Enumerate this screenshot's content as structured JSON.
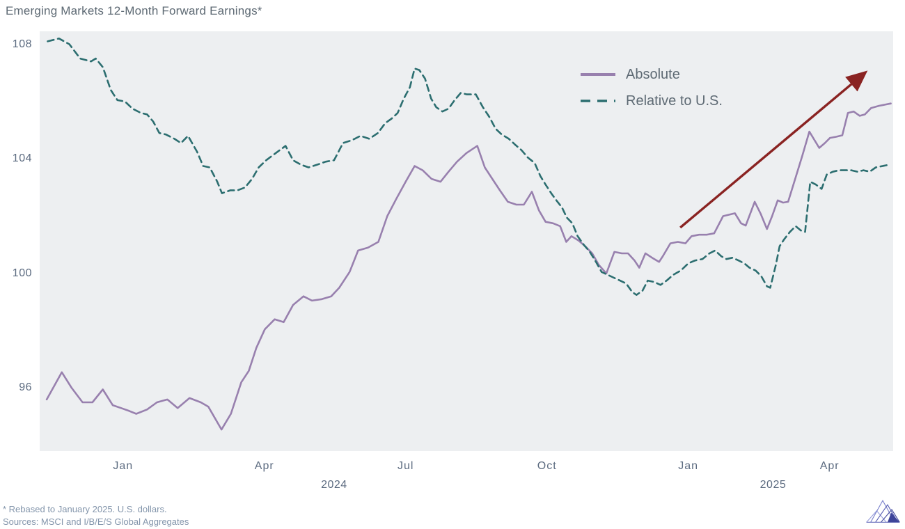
{
  "title": "Emerging Markets 12-Month Forward Earnings*",
  "footnotes": [
    "* Rebased to January 2025. U.S. dollars.",
    "Sources: MSCI and I/B/E/S Global Aggregates"
  ],
  "colors": {
    "absolute_line": "#9880ae",
    "relative_line": "#2c6e70",
    "arrow": "#8a2322",
    "plot_background": "#edeff1",
    "axis_text": "#5c6b80",
    "title_text": "#5e6a74",
    "footnote_text": "#8395ab"
  },
  "legend": {
    "items": [
      "Absolute",
      "Relative to U.S."
    ]
  },
  "chart_data": {
    "type": "line",
    "title": "Emerging Markets 12-Month Forward Earnings*",
    "x_unit": "months since Jan 2024 (weekly data, ~Nov 2023 to ~May 2025)",
    "xlim": [
      -1.77,
      16.35
    ],
    "ylim": [
      93.8,
      108.45
    ],
    "grid": false,
    "legend_position": "upper right inside plot",
    "y_ticks": [
      96,
      100,
      104,
      108
    ],
    "x_ticks": [
      {
        "t": 0,
        "label": "Jan"
      },
      {
        "t": 3,
        "label": "Apr"
      },
      {
        "t": 6,
        "label": "Jul"
      },
      {
        "t": 9,
        "label": "Oct"
      },
      {
        "t": 12,
        "label": "Jan"
      },
      {
        "t": 15,
        "label": "Apr"
      }
    ],
    "year_labels": [
      {
        "t": 4.48,
        "label": "2024"
      },
      {
        "t": 13.8,
        "label": "2025"
      }
    ],
    "annotation_arrow": {
      "from": [
        11.83,
        101.6
      ],
      "to": [
        15.75,
        107.0
      ]
    },
    "series": [
      {
        "name": "Absolute",
        "color": "#9880ae",
        "dash": null,
        "points": [
          [
            -1.62,
            95.6
          ],
          [
            -1.3,
            96.55
          ],
          [
            -1.09,
            96.0
          ],
          [
            -0.86,
            95.5
          ],
          [
            -0.65,
            95.5
          ],
          [
            -0.43,
            95.95
          ],
          [
            -0.22,
            95.4
          ],
          [
            -0.04,
            95.3
          ],
          [
            0.13,
            95.2
          ],
          [
            0.28,
            95.1
          ],
          [
            0.51,
            95.25
          ],
          [
            0.72,
            95.5
          ],
          [
            0.94,
            95.6
          ],
          [
            1.16,
            95.3
          ],
          [
            1.41,
            95.65
          ],
          [
            1.65,
            95.5
          ],
          [
            1.81,
            95.35
          ],
          [
            2.09,
            94.55
          ],
          [
            2.29,
            95.1
          ],
          [
            2.51,
            96.2
          ],
          [
            2.67,
            96.6
          ],
          [
            2.83,
            97.4
          ],
          [
            3.01,
            98.05
          ],
          [
            3.22,
            98.4
          ],
          [
            3.41,
            98.3
          ],
          [
            3.61,
            98.9
          ],
          [
            3.83,
            99.2
          ],
          [
            4.01,
            99.05
          ],
          [
            4.22,
            99.1
          ],
          [
            4.42,
            99.2
          ],
          [
            4.59,
            99.5
          ],
          [
            4.81,
            100.05
          ],
          [
            4.99,
            100.8
          ],
          [
            5.2,
            100.9
          ],
          [
            5.42,
            101.1
          ],
          [
            5.61,
            102.0
          ],
          [
            5.8,
            102.6
          ],
          [
            6.0,
            103.2
          ],
          [
            6.19,
            103.75
          ],
          [
            6.36,
            103.6
          ],
          [
            6.55,
            103.3
          ],
          [
            6.74,
            103.2
          ],
          [
            6.91,
            103.55
          ],
          [
            7.09,
            103.9
          ],
          [
            7.29,
            104.2
          ],
          [
            7.52,
            104.45
          ],
          [
            7.68,
            103.7
          ],
          [
            7.84,
            103.3
          ],
          [
            8.0,
            102.9
          ],
          [
            8.17,
            102.5
          ],
          [
            8.35,
            102.4
          ],
          [
            8.51,
            102.4
          ],
          [
            8.68,
            102.85
          ],
          [
            8.83,
            102.2
          ],
          [
            8.97,
            101.8
          ],
          [
            9.13,
            101.75
          ],
          [
            9.28,
            101.65
          ],
          [
            9.41,
            101.1
          ],
          [
            9.52,
            101.3
          ],
          [
            9.67,
            101.15
          ],
          [
            9.81,
            100.95
          ],
          [
            9.96,
            100.7
          ],
          [
            10.1,
            100.3
          ],
          [
            10.26,
            100.0
          ],
          [
            10.43,
            100.75
          ],
          [
            10.59,
            100.7
          ],
          [
            10.72,
            100.7
          ],
          [
            10.86,
            100.45
          ],
          [
            10.96,
            100.2
          ],
          [
            11.09,
            100.7
          ],
          [
            11.23,
            100.55
          ],
          [
            11.38,
            100.4
          ],
          [
            11.46,
            100.6
          ],
          [
            11.62,
            101.05
          ],
          [
            11.78,
            101.1
          ],
          [
            11.94,
            101.05
          ],
          [
            12.07,
            101.3
          ],
          [
            12.23,
            101.35
          ],
          [
            12.39,
            101.35
          ],
          [
            12.55,
            101.4
          ],
          [
            12.74,
            102.0
          ],
          [
            12.87,
            102.05
          ],
          [
            12.99,
            102.1
          ],
          [
            13.12,
            101.75
          ],
          [
            13.22,
            101.67
          ],
          [
            13.41,
            102.5
          ],
          [
            13.54,
            102.07
          ],
          [
            13.67,
            101.55
          ],
          [
            13.78,
            102.0
          ],
          [
            13.9,
            102.55
          ],
          [
            14.01,
            102.47
          ],
          [
            14.12,
            102.5
          ],
          [
            14.28,
            103.35
          ],
          [
            14.42,
            104.1
          ],
          [
            14.57,
            104.95
          ],
          [
            14.78,
            104.38
          ],
          [
            14.9,
            104.55
          ],
          [
            15.01,
            104.73
          ],
          [
            15.14,
            104.77
          ],
          [
            15.27,
            104.82
          ],
          [
            15.39,
            105.6
          ],
          [
            15.51,
            105.65
          ],
          [
            15.64,
            105.5
          ],
          [
            15.75,
            105.55
          ],
          [
            15.88,
            105.77
          ],
          [
            16.05,
            105.85
          ],
          [
            16.3,
            105.93
          ]
        ]
      },
      {
        "name": "Relative to U.S.",
        "color": "#2c6e70",
        "dash": "9 6",
        "points": [
          [
            -1.6,
            108.1
          ],
          [
            -1.36,
            108.2
          ],
          [
            -1.14,
            108.0
          ],
          [
            -0.91,
            107.5
          ],
          [
            -0.68,
            107.4
          ],
          [
            -0.58,
            107.5
          ],
          [
            -0.43,
            107.2
          ],
          [
            -0.26,
            106.4
          ],
          [
            -0.12,
            106.05
          ],
          [
            0.04,
            106.0
          ],
          [
            0.2,
            105.75
          ],
          [
            0.38,
            105.6
          ],
          [
            0.51,
            105.55
          ],
          [
            0.64,
            105.3
          ],
          [
            0.77,
            104.9
          ],
          [
            0.91,
            104.85
          ],
          [
            1.09,
            104.7
          ],
          [
            1.23,
            104.55
          ],
          [
            1.38,
            104.8
          ],
          [
            1.57,
            104.25
          ],
          [
            1.7,
            103.75
          ],
          [
            1.84,
            103.7
          ],
          [
            2.0,
            103.2
          ],
          [
            2.1,
            102.8
          ],
          [
            2.28,
            102.9
          ],
          [
            2.43,
            102.9
          ],
          [
            2.59,
            103.0
          ],
          [
            2.74,
            103.3
          ],
          [
            2.88,
            103.7
          ],
          [
            3.04,
            103.95
          ],
          [
            3.2,
            104.15
          ],
          [
            3.45,
            104.45
          ],
          [
            3.61,
            103.95
          ],
          [
            3.77,
            103.8
          ],
          [
            3.94,
            103.7
          ],
          [
            4.13,
            103.8
          ],
          [
            4.3,
            103.9
          ],
          [
            4.48,
            103.95
          ],
          [
            4.67,
            104.55
          ],
          [
            4.86,
            104.65
          ],
          [
            5.04,
            104.8
          ],
          [
            5.23,
            104.7
          ],
          [
            5.41,
            104.9
          ],
          [
            5.57,
            105.25
          ],
          [
            5.7,
            105.4
          ],
          [
            5.83,
            105.6
          ],
          [
            5.96,
            106.1
          ],
          [
            6.09,
            106.5
          ],
          [
            6.19,
            107.15
          ],
          [
            6.29,
            107.1
          ],
          [
            6.41,
            106.8
          ],
          [
            6.54,
            106.1
          ],
          [
            6.65,
            105.8
          ],
          [
            6.78,
            105.65
          ],
          [
            6.91,
            105.75
          ],
          [
            7.04,
            106.05
          ],
          [
            7.17,
            106.3
          ],
          [
            7.3,
            106.25
          ],
          [
            7.49,
            106.25
          ],
          [
            7.64,
            105.8
          ],
          [
            7.78,
            105.45
          ],
          [
            7.91,
            105.05
          ],
          [
            8.04,
            104.85
          ],
          [
            8.19,
            104.7
          ],
          [
            8.32,
            104.5
          ],
          [
            8.46,
            104.3
          ],
          [
            8.59,
            104.05
          ],
          [
            8.74,
            103.85
          ],
          [
            8.86,
            103.4
          ],
          [
            8.97,
            103.1
          ],
          [
            9.09,
            102.8
          ],
          [
            9.2,
            102.55
          ],
          [
            9.32,
            102.3
          ],
          [
            9.42,
            101.95
          ],
          [
            9.54,
            101.75
          ],
          [
            9.65,
            101.3
          ],
          [
            9.78,
            101.0
          ],
          [
            9.91,
            100.75
          ],
          [
            10.04,
            100.4
          ],
          [
            10.16,
            100.05
          ],
          [
            10.29,
            99.95
          ],
          [
            10.42,
            99.85
          ],
          [
            10.55,
            99.75
          ],
          [
            10.68,
            99.65
          ],
          [
            10.81,
            99.35
          ],
          [
            10.9,
            99.25
          ],
          [
            11.03,
            99.4
          ],
          [
            11.14,
            99.75
          ],
          [
            11.28,
            99.7
          ],
          [
            11.41,
            99.6
          ],
          [
            11.54,
            99.75
          ],
          [
            11.68,
            99.95
          ],
          [
            11.84,
            100.1
          ],
          [
            12.0,
            100.35
          ],
          [
            12.14,
            100.45
          ],
          [
            12.3,
            100.5
          ],
          [
            12.45,
            100.7
          ],
          [
            12.57,
            100.8
          ],
          [
            12.7,
            100.6
          ],
          [
            12.81,
            100.5
          ],
          [
            12.94,
            100.55
          ],
          [
            13.07,
            100.45
          ],
          [
            13.19,
            100.35
          ],
          [
            13.3,
            100.2
          ],
          [
            13.43,
            100.1
          ],
          [
            13.55,
            99.9
          ],
          [
            13.67,
            99.55
          ],
          [
            13.74,
            99.5
          ],
          [
            13.86,
            100.3
          ],
          [
            13.94,
            100.95
          ],
          [
            14.04,
            101.2
          ],
          [
            14.16,
            101.45
          ],
          [
            14.28,
            101.65
          ],
          [
            14.39,
            101.5
          ],
          [
            14.48,
            101.45
          ],
          [
            14.59,
            103.2
          ],
          [
            14.71,
            103.1
          ],
          [
            14.83,
            102.95
          ],
          [
            14.94,
            103.45
          ],
          [
            15.07,
            103.55
          ],
          [
            15.2,
            103.6
          ],
          [
            15.33,
            103.6
          ],
          [
            15.46,
            103.6
          ],
          [
            15.59,
            103.55
          ],
          [
            15.72,
            103.6
          ],
          [
            15.85,
            103.55
          ],
          [
            15.98,
            103.7
          ],
          [
            16.28,
            103.8
          ]
        ]
      }
    ]
  }
}
